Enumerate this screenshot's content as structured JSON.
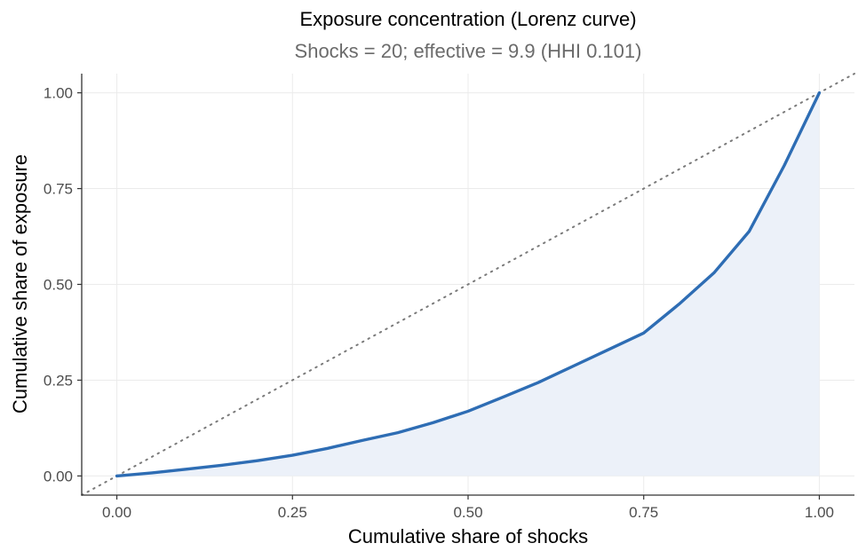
{
  "chart_data": {
    "type": "area",
    "title": "Exposure concentration (Lorenz curve)",
    "subtitle": "Shocks = 20;  effective = 9.9 (HHI 0.101)",
    "xlabel": "Cumulative share of shocks",
    "ylabel": "Cumulative share of exposure",
    "xlim": [
      -0.05,
      1.05
    ],
    "ylim": [
      -0.05,
      1.05
    ],
    "x_ticks": [
      0,
      0.25,
      0.5,
      0.75,
      1
    ],
    "y_ticks": [
      0,
      0.25,
      0.5,
      0.75,
      1
    ],
    "x_tick_labels": [
      "0.00",
      "0.25",
      "0.50",
      "0.75",
      "1.00"
    ],
    "y_tick_labels": [
      "0.00",
      "0.25",
      "0.50",
      "0.75",
      "1.00"
    ],
    "grid": true,
    "legend": "none",
    "equality_line": {
      "style": "dotted",
      "color": "#7a7a7a"
    },
    "series": [
      {
        "x": [
          0,
          0.05,
          0.1,
          0.15,
          0.2,
          0.25,
          0.3,
          0.35,
          0.4,
          0.45,
          0.5,
          0.55,
          0.6,
          0.65,
          0.7,
          0.75,
          0.8,
          0.85,
          0.9,
          0.95,
          1.0
        ],
        "values": [
          0,
          0.008,
          0.018,
          0.028,
          0.04,
          0.054,
          0.072,
          0.093,
          0.113,
          0.139,
          0.169,
          0.206,
          0.244,
          0.287,
          0.33,
          0.373,
          0.448,
          0.53,
          0.638,
          0.81,
          1.0
        ],
        "color": "#2e6db4",
        "fill": "#ecf1f9"
      }
    ]
  }
}
